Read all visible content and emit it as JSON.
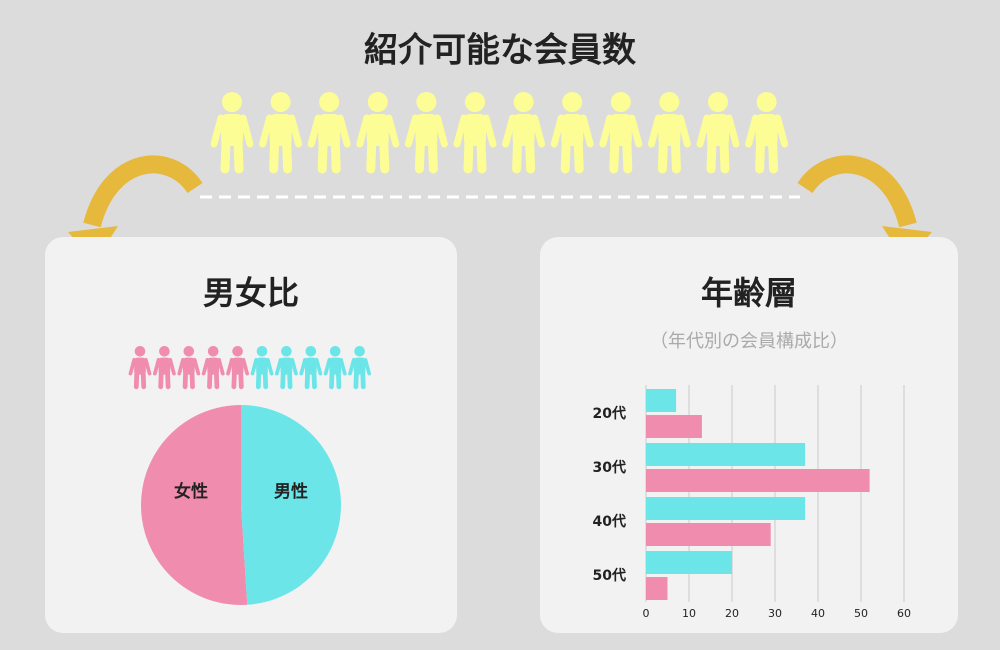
{
  "header": {
    "title": "紹介可能な会員数"
  },
  "chart_data": [
    {
      "type": "pie",
      "title": "男女比",
      "categories": [
        "女性",
        "男性"
      ],
      "values": [
        51,
        49
      ],
      "colors": [
        "#f08cad",
        "#6ce5e8"
      ]
    },
    {
      "type": "hbar",
      "title": "年齢層",
      "subtitle": "（年代別の会員構成比）",
      "categories": [
        "20代",
        "30代",
        "40代",
        "50代"
      ],
      "series": [
        {
          "color": "#6ce5e8",
          "values": [
            7,
            37,
            37,
            20
          ]
        },
        {
          "color": "#f08cad",
          "values": [
            13,
            52,
            29,
            5
          ]
        }
      ],
      "xlim": [
        0,
        60
      ],
      "xticks": [
        0,
        10,
        20,
        30,
        40,
        50,
        60
      ],
      "grid": true
    }
  ]
}
